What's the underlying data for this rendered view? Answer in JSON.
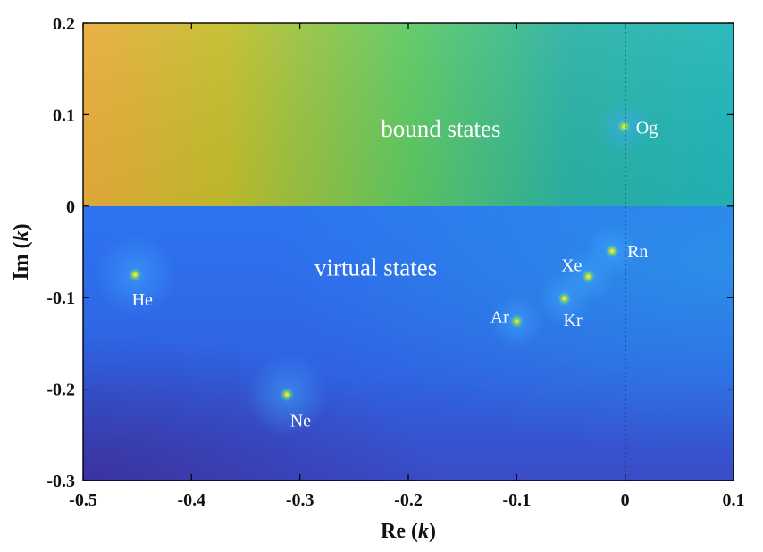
{
  "chart_data": {
    "type": "heatmap",
    "xlabel": "Re",
    "xlabel_var": "k",
    "ylabel": "Im",
    "ylabel_var": "k",
    "xlim": [
      -0.5,
      0.1
    ],
    "ylim": [
      -0.3,
      0.2
    ],
    "xticks": [
      -0.5,
      -0.4,
      -0.3,
      -0.2,
      -0.1,
      0,
      0.1
    ],
    "xtick_labels": [
      "-0.5",
      "-0.4",
      "-0.3",
      "-0.2",
      "-0.1",
      "0",
      "0.1"
    ],
    "yticks": [
      0.2,
      0.1,
      0,
      -0.1,
      -0.2,
      -0.3
    ],
    "ytick_labels": [
      "0.2",
      "0.1",
      "0",
      "-0.1",
      "-0.2",
      "-0.3"
    ],
    "reference_line": {
      "x": 0,
      "style": "dotted"
    },
    "regions": [
      {
        "label": "bound states",
        "x": -0.17,
        "y": 0.085
      },
      {
        "label": "virtual states",
        "x": -0.23,
        "y": -0.067
      }
    ],
    "points": [
      {
        "name": "He",
        "x": -0.452,
        "y": -0.075,
        "label_x": -0.455,
        "label_y": -0.102,
        "anchor": "start"
      },
      {
        "name": "Ne",
        "x": -0.312,
        "y": -0.206,
        "label_x": -0.309,
        "label_y": -0.234,
        "anchor": "start"
      },
      {
        "name": "Ar",
        "x": -0.1,
        "y": -0.126,
        "label_x": -0.107,
        "label_y": -0.121,
        "anchor": "end"
      },
      {
        "name": "Kr",
        "x": -0.056,
        "y": -0.101,
        "label_x": -0.057,
        "label_y": -0.124,
        "anchor": "start"
      },
      {
        "name": "Xe",
        "x": -0.034,
        "y": -0.077,
        "label_x": -0.059,
        "label_y": -0.064,
        "anchor": "start"
      },
      {
        "name": "Rn",
        "x": -0.012,
        "y": -0.049,
        "label_x": 0.002,
        "label_y": -0.049,
        "anchor": "start"
      },
      {
        "name": "Og",
        "x": -0.001,
        "y": 0.087,
        "label_x": 0.01,
        "label_y": 0.086,
        "anchor": "start"
      }
    ],
    "colors": {
      "upper_left": "#e9ac3c",
      "upper_mid": "#5ec962",
      "upper_right": "#21b6ba",
      "lower_base": "#2f6ff0",
      "lower_dark": "#3a3fb5",
      "peak_glow": "#a9e04a",
      "peak_core": "#f5e433"
    }
  }
}
